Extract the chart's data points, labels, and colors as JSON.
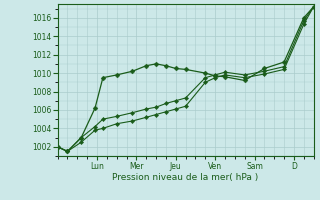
{
  "background_color": "#cce8e8",
  "grid_color": "#aacccc",
  "line_color": "#1a5c1a",
  "xlabel": "Pression niveau de la mer( hPa )",
  "ylim": [
    1001.0,
    1017.5
  ],
  "yticks": [
    1002,
    1004,
    1006,
    1008,
    1010,
    1012,
    1014,
    1016
  ],
  "day_labels": [
    "Lun",
    "Mer",
    "Jeu",
    "Ven",
    "Sam",
    "D"
  ],
  "day_positions": [
    2,
    4,
    6,
    8,
    10,
    12
  ],
  "xlim": [
    0,
    13
  ],
  "series1_x": [
    0,
    0.5,
    1.2,
    1.9,
    2.3,
    3.0,
    3.8,
    4.5,
    5.0,
    5.5,
    6.0,
    6.5,
    7.5,
    8.0,
    8.5,
    9.5,
    10.5,
    11.5,
    12.5,
    13.0
  ],
  "series1_y": [
    1002.0,
    1001.5,
    1003.0,
    1006.2,
    1009.5,
    1009.8,
    1010.2,
    1010.8,
    1011.0,
    1010.8,
    1010.5,
    1010.4,
    1010.0,
    1009.7,
    1009.6,
    1009.2,
    1010.5,
    1011.2,
    1016.0,
    1017.2
  ],
  "series2_x": [
    0,
    0.5,
    1.2,
    1.9,
    2.3,
    3.0,
    3.8,
    4.5,
    5.0,
    5.5,
    6.0,
    6.5,
    7.5,
    8.0,
    8.5,
    9.5,
    10.5,
    11.5,
    12.5,
    13.0
  ],
  "series2_y": [
    1002.0,
    1001.5,
    1003.0,
    1004.2,
    1005.0,
    1005.3,
    1005.7,
    1006.1,
    1006.3,
    1006.7,
    1007.0,
    1007.3,
    1009.5,
    1009.8,
    1010.1,
    1009.8,
    1010.2,
    1010.7,
    1015.7,
    1017.2
  ],
  "series3_x": [
    0,
    0.5,
    1.2,
    1.9,
    2.3,
    3.0,
    3.8,
    4.5,
    5.0,
    5.5,
    6.0,
    6.5,
    7.5,
    8.0,
    8.5,
    9.5,
    10.5,
    11.5,
    12.5,
    13.0
  ],
  "series3_y": [
    1002.0,
    1001.5,
    1002.5,
    1003.8,
    1004.0,
    1004.5,
    1004.8,
    1005.2,
    1005.5,
    1005.8,
    1006.1,
    1006.4,
    1009.0,
    1009.5,
    1009.8,
    1009.5,
    1009.9,
    1010.4,
    1015.3,
    1017.2
  ]
}
